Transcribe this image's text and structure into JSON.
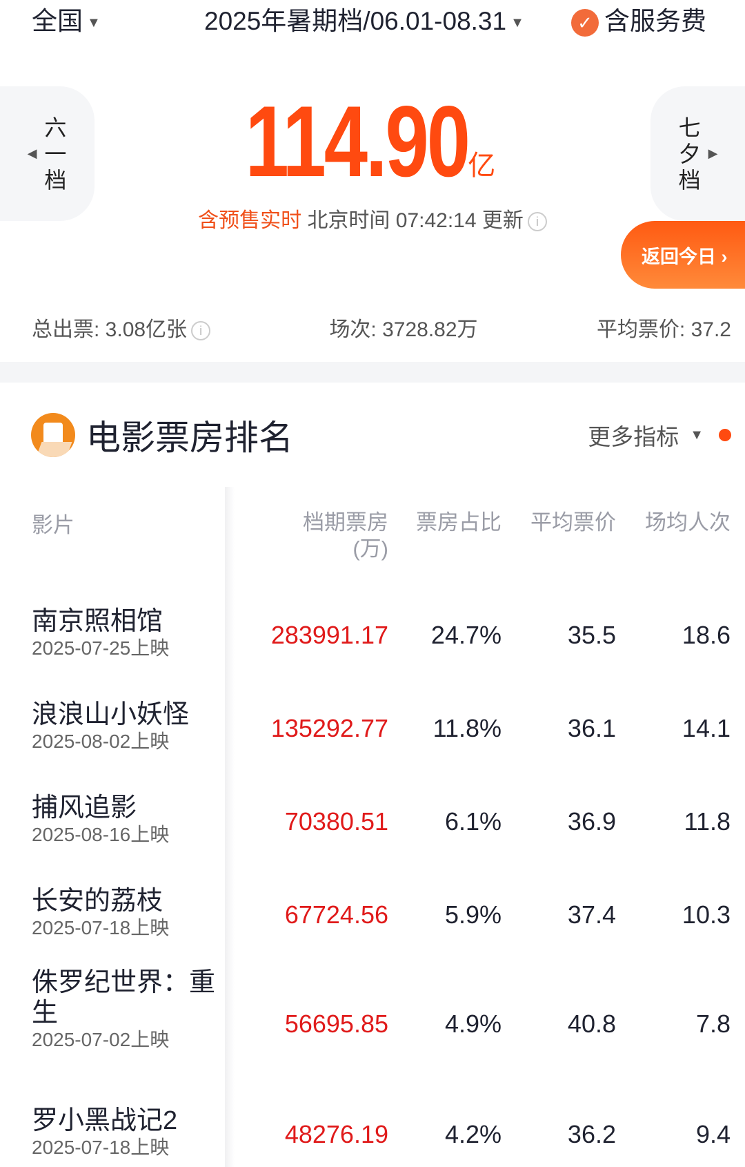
{
  "top": {
    "region": "全国",
    "period": "2025年暑期档/06.01-08.31",
    "service_fee": "含服务费"
  },
  "prev_period": "六一档",
  "next_period": "七夕档",
  "total": {
    "value": "114.90",
    "unit": "亿"
  },
  "update": {
    "highlight": "含预售实时",
    "text": "北京时间 07:42:14 更新"
  },
  "back_today": "返回今日 ›",
  "stats": {
    "tickets": "总出票: 3.08亿张",
    "shows": "场次: 3728.82万",
    "avg_price": "平均票价: 37.2"
  },
  "section": {
    "title": "电影票房排名",
    "more": "更多指标"
  },
  "columns": {
    "film": "影片",
    "box_office": "档期票房",
    "box_office_unit": "(万)",
    "share": "票房占比",
    "avg_price": "平均票价",
    "avg_attendance": "场均人次"
  },
  "rows": [
    {
      "name": "南京照相馆",
      "date": "2025-07-25上映",
      "box": "283991.17",
      "share": "24.7%",
      "price": "35.5",
      "att": "18.6"
    },
    {
      "name": "浪浪山小妖怪",
      "date": "2025-08-02上映",
      "box": "135292.77",
      "share": "11.8%",
      "price": "36.1",
      "att": "14.1"
    },
    {
      "name": "捕风追影",
      "date": "2025-08-16上映",
      "box": "70380.51",
      "share": "6.1%",
      "price": "36.9",
      "att": "11.8"
    },
    {
      "name": "长安的荔枝",
      "date": "2025-07-18上映",
      "box": "67724.56",
      "share": "5.9%",
      "price": "37.4",
      "att": "10.3"
    },
    {
      "name": "侏罗纪世界：重生",
      "date": "2025-07-02上映",
      "box": "56695.85",
      "share": "4.9%",
      "price": "40.8",
      "att": "7.8"
    },
    {
      "name": "罗小黑战记2",
      "date": "2025-07-18上映",
      "box": "48276.19",
      "share": "4.2%",
      "price": "36.2",
      "att": "9.4"
    }
  ],
  "colors": {
    "accent": "#ff4a10",
    "box_value": "#e01a1a"
  }
}
